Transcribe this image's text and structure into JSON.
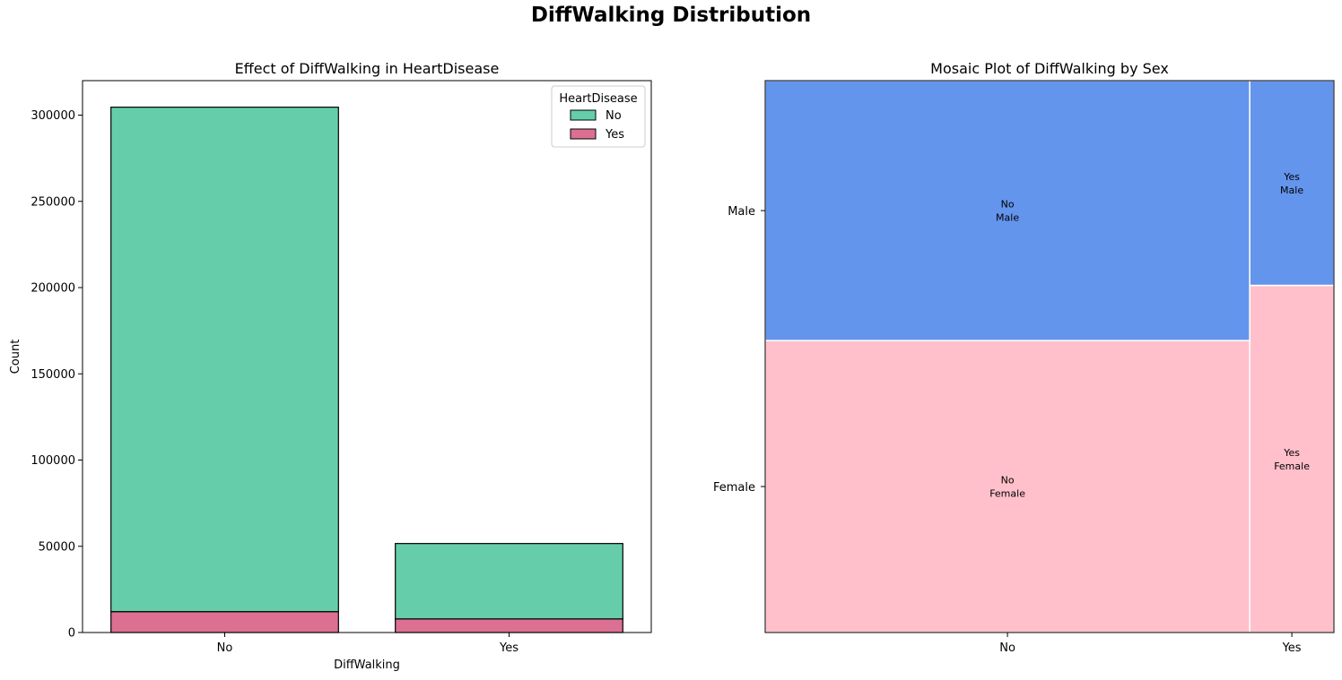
{
  "figure": {
    "title": "DiffWalking Distribution"
  },
  "chart_data": [
    {
      "type": "bar",
      "stacked": true,
      "title": "Effect of DiffWalking in HeartDisease",
      "xlabel": "DiffWalking",
      "ylabel": "Count",
      "categories": [
        "No",
        "Yes"
      ],
      "series": [
        {
          "name": "No",
          "values": [
            292500,
            43700
          ],
          "color": "#66cdaa"
        },
        {
          "name": "Yes",
          "values": [
            12100,
            7900
          ],
          "color": "#db7093"
        }
      ],
      "ylim": [
        0,
        320000
      ],
      "yticks": [
        0,
        50000,
        100000,
        150000,
        200000,
        250000,
        300000
      ],
      "legend": {
        "title": "HeartDisease",
        "placement": "top-right"
      },
      "grid": false
    },
    {
      "type": "mosaic",
      "title": "Mosaic Plot of DiffWalking by Sex",
      "x_categories": [
        "No",
        "Yes"
      ],
      "x_proportions": [
        0.852,
        0.148
      ],
      "y_categories": [
        "Male",
        "Female"
      ],
      "cells": [
        {
          "x": "No",
          "y": "Male",
          "label": "No\nMale",
          "proportion": 0.471,
          "color": "#6495ed"
        },
        {
          "x": "No",
          "y": "Female",
          "label": "No\nFemale",
          "proportion": 0.529,
          "color": "#ffc0cb"
        },
        {
          "x": "Yes",
          "y": "Male",
          "label": "Yes\nMale",
          "proportion": 0.371,
          "color": "#6495ed"
        },
        {
          "x": "Yes",
          "y": "Female",
          "label": "Yes\nFemale",
          "proportion": 0.629,
          "color": "#ffc0cb"
        }
      ],
      "grid": false
    }
  ]
}
